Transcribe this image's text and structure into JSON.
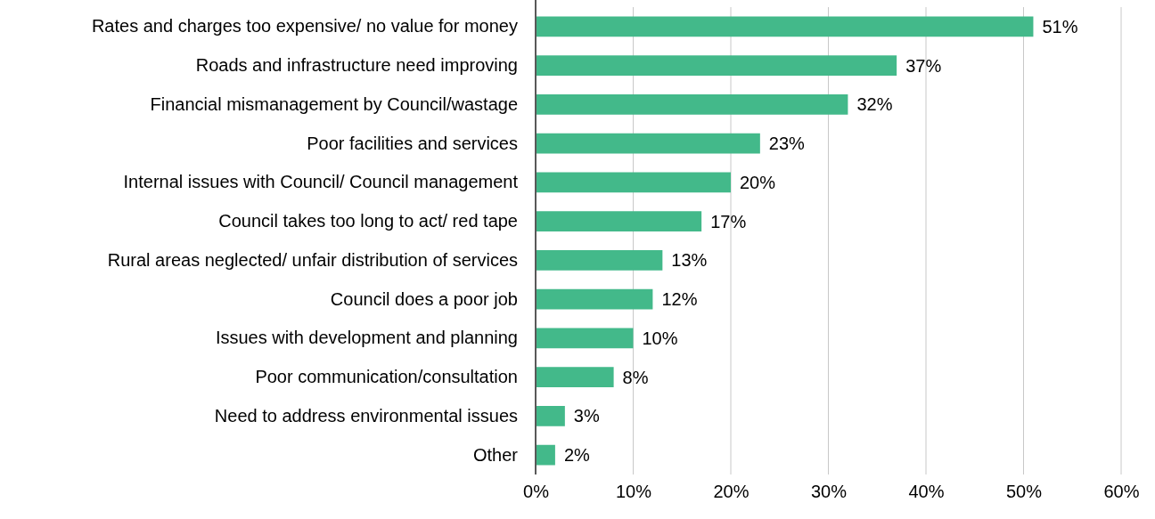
{
  "chart_data": {
    "type": "bar",
    "orientation": "horizontal",
    "categories": [
      "Rates and charges too expensive/ no value for money",
      "Roads and infrastructure need improving",
      "Financial mismanagement by Council/wastage",
      "Poor facilities and services",
      "Internal issues with Council/ Council management",
      "Council takes too long to act/ red tape",
      "Rural areas neglected/ unfair distribution of services",
      "Council does a poor job",
      "Issues with development and planning",
      "Poor communication/consultation",
      "Need to address environmental issues",
      "Other"
    ],
    "values": [
      51,
      37,
      32,
      23,
      20,
      17,
      13,
      12,
      10,
      8,
      3,
      2
    ],
    "value_labels": [
      "51%",
      "37%",
      "32%",
      "23%",
      "20%",
      "17%",
      "13%",
      "12%",
      "10%",
      "8%",
      "3%",
      "2%"
    ],
    "color": "#43b98a",
    "xlim": [
      0,
      60
    ],
    "xticks": [
      {
        "value": 0,
        "label": "0%"
      },
      {
        "value": 10,
        "label": "10%"
      },
      {
        "value": 20,
        "label": "20%"
      },
      {
        "value": 30,
        "label": "30%"
      },
      {
        "value": 40,
        "label": "40%"
      },
      {
        "value": 50,
        "label": "50%"
      },
      {
        "value": 60,
        "label": "60%"
      }
    ],
    "grid": "x"
  }
}
